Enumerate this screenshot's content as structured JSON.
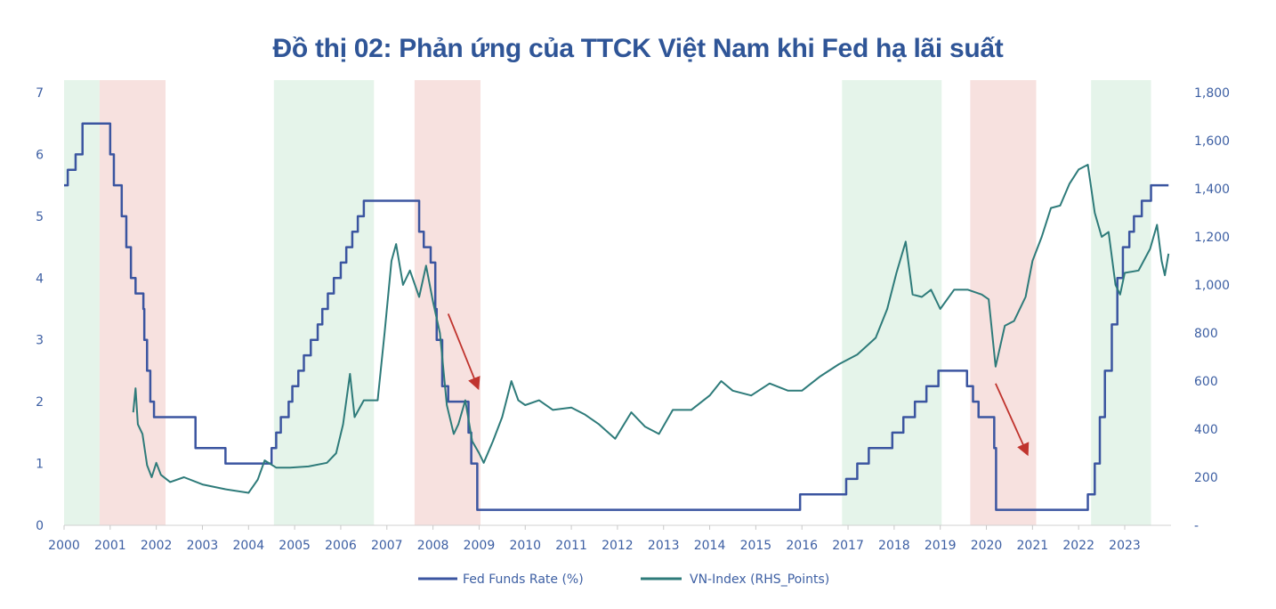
{
  "chart_data": {
    "type": "line",
    "title": "Đồ thị 02: Phản ứng của TTCK Việt Nam khi Fed hạ lãi suất",
    "xlim": [
      2000,
      2024
    ],
    "x_ticks": [
      "2000",
      "2001",
      "2002",
      "2003",
      "2004",
      "2005",
      "2006",
      "2007",
      "2008",
      "2009",
      "2010",
      "2011",
      "2012",
      "2013",
      "2014",
      "2015",
      "2016",
      "2017",
      "2018",
      "2019",
      "2020",
      "2021",
      "2022",
      "2023"
    ],
    "y_left": {
      "lim": [
        0,
        7
      ],
      "ticks": [
        "0",
        "1",
        "2",
        "3",
        "4",
        "5",
        "6",
        "7"
      ]
    },
    "y_right": {
      "lim": [
        0,
        1800
      ],
      "ticks": [
        "-",
        "200",
        "400",
        "600",
        "800",
        "1,000",
        "1,200",
        "1,400",
        "1,600",
        "1,800"
      ]
    },
    "grid": false,
    "legend_placement": "bottom",
    "shaded_periods": [
      {
        "type": "rate-hike",
        "color": "#E5F4EA",
        "from": 2000.0,
        "to": 2000.77
      },
      {
        "type": "rate-cut",
        "color": "#F7E1DF",
        "from": 2000.77,
        "to": 2002.2
      },
      {
        "type": "rate-hike",
        "color": "#E5F4EA",
        "from": 2004.55,
        "to": 2006.72
      },
      {
        "type": "rate-cut",
        "color": "#F7E1DF",
        "from": 2007.6,
        "to": 2009.03
      },
      {
        "type": "rate-hike",
        "color": "#E5F4EA",
        "from": 2016.87,
        "to": 2019.03
      },
      {
        "type": "rate-cut",
        "color": "#F7E1DF",
        "from": 2019.65,
        "to": 2021.08
      },
      {
        "type": "rate-hike",
        "color": "#E5F4EA",
        "from": 2022.27,
        "to": 2023.57
      }
    ],
    "series": [
      {
        "name": "Fed Funds Rate (%)",
        "axis": "left",
        "style": "step",
        "color": "#3B55A0",
        "points": [
          [
            2000.0,
            5.5
          ],
          [
            2000.08,
            5.75
          ],
          [
            2000.25,
            6.0
          ],
          [
            2000.4,
            6.5
          ],
          [
            2001.0,
            6.0
          ],
          [
            2001.08,
            5.5
          ],
          [
            2001.25,
            5.0
          ],
          [
            2001.35,
            4.5
          ],
          [
            2001.45,
            4.0
          ],
          [
            2001.55,
            3.75
          ],
          [
            2001.72,
            3.5
          ],
          [
            2001.74,
            3.0
          ],
          [
            2001.8,
            2.5
          ],
          [
            2001.87,
            2.0
          ],
          [
            2001.95,
            1.75
          ],
          [
            2002.85,
            1.25
          ],
          [
            2003.5,
            1.0
          ],
          [
            2004.5,
            1.25
          ],
          [
            2004.6,
            1.5
          ],
          [
            2004.7,
            1.75
          ],
          [
            2004.87,
            2.0
          ],
          [
            2004.95,
            2.25
          ],
          [
            2005.08,
            2.5
          ],
          [
            2005.2,
            2.75
          ],
          [
            2005.35,
            3.0
          ],
          [
            2005.5,
            3.25
          ],
          [
            2005.6,
            3.5
          ],
          [
            2005.72,
            3.75
          ],
          [
            2005.85,
            4.0
          ],
          [
            2006.0,
            4.25
          ],
          [
            2006.12,
            4.5
          ],
          [
            2006.25,
            4.75
          ],
          [
            2006.37,
            5.0
          ],
          [
            2006.5,
            5.25
          ],
          [
            2007.7,
            4.75
          ],
          [
            2007.8,
            4.5
          ],
          [
            2007.95,
            4.25
          ],
          [
            2008.05,
            3.5
          ],
          [
            2008.08,
            3.0
          ],
          [
            2008.2,
            2.25
          ],
          [
            2008.33,
            2.0
          ],
          [
            2008.77,
            1.5
          ],
          [
            2008.83,
            1.0
          ],
          [
            2008.96,
            0.25
          ],
          [
            2015.96,
            0.5
          ],
          [
            2016.96,
            0.75
          ],
          [
            2017.2,
            1.0
          ],
          [
            2017.45,
            1.25
          ],
          [
            2017.96,
            1.5
          ],
          [
            2018.2,
            1.75
          ],
          [
            2018.45,
            2.0
          ],
          [
            2018.7,
            2.25
          ],
          [
            2018.96,
            2.5
          ],
          [
            2019.58,
            2.25
          ],
          [
            2019.71,
            2.0
          ],
          [
            2019.83,
            1.75
          ],
          [
            2020.17,
            1.25
          ],
          [
            2020.21,
            0.25
          ],
          [
            2022.2,
            0.5
          ],
          [
            2022.35,
            1.0
          ],
          [
            2022.46,
            1.75
          ],
          [
            2022.57,
            2.5
          ],
          [
            2022.72,
            3.25
          ],
          [
            2022.84,
            4.0
          ],
          [
            2022.96,
            4.5
          ],
          [
            2023.1,
            4.75
          ],
          [
            2023.2,
            5.0
          ],
          [
            2023.37,
            5.25
          ],
          [
            2023.57,
            5.5
          ],
          [
            2023.95,
            5.5
          ]
        ]
      },
      {
        "name": "VN-Index (RHS_Points)",
        "axis": "right",
        "style": "line",
        "color": "#2E7B7A",
        "points": [
          [
            2001.5,
            470
          ],
          [
            2001.55,
            570
          ],
          [
            2001.6,
            420
          ],
          [
            2001.7,
            380
          ],
          [
            2001.8,
            250
          ],
          [
            2001.9,
            200
          ],
          [
            2002.0,
            260
          ],
          [
            2002.1,
            210
          ],
          [
            2002.3,
            180
          ],
          [
            2002.6,
            200
          ],
          [
            2003.0,
            170
          ],
          [
            2003.5,
            150
          ],
          [
            2004.0,
            135
          ],
          [
            2004.2,
            190
          ],
          [
            2004.35,
            270
          ],
          [
            2004.6,
            240
          ],
          [
            2004.9,
            240
          ],
          [
            2005.3,
            245
          ],
          [
            2005.7,
            260
          ],
          [
            2005.9,
            300
          ],
          [
            2006.05,
            420
          ],
          [
            2006.2,
            630
          ],
          [
            2006.3,
            450
          ],
          [
            2006.5,
            520
          ],
          [
            2006.8,
            520
          ],
          [
            2006.95,
            800
          ],
          [
            2007.1,
            1100
          ],
          [
            2007.2,
            1170
          ],
          [
            2007.35,
            1000
          ],
          [
            2007.5,
            1060
          ],
          [
            2007.7,
            950
          ],
          [
            2007.85,
            1080
          ],
          [
            2008.0,
            930
          ],
          [
            2008.15,
            800
          ],
          [
            2008.3,
            500
          ],
          [
            2008.45,
            380
          ],
          [
            2008.55,
            420
          ],
          [
            2008.7,
            520
          ],
          [
            2008.85,
            350
          ],
          [
            2009.0,
            300
          ],
          [
            2009.1,
            260
          ],
          [
            2009.3,
            350
          ],
          [
            2009.5,
            450
          ],
          [
            2009.7,
            600
          ],
          [
            2009.85,
            520
          ],
          [
            2010.0,
            500
          ],
          [
            2010.3,
            520
          ],
          [
            2010.6,
            480
          ],
          [
            2011.0,
            490
          ],
          [
            2011.3,
            460
          ],
          [
            2011.6,
            420
          ],
          [
            2011.95,
            360
          ],
          [
            2012.3,
            470
          ],
          [
            2012.6,
            410
          ],
          [
            2012.9,
            380
          ],
          [
            2013.2,
            480
          ],
          [
            2013.6,
            480
          ],
          [
            2014.0,
            540
          ],
          [
            2014.25,
            600
          ],
          [
            2014.5,
            560
          ],
          [
            2014.9,
            540
          ],
          [
            2015.3,
            590
          ],
          [
            2015.7,
            560
          ],
          [
            2016.0,
            560
          ],
          [
            2016.4,
            620
          ],
          [
            2016.8,
            670
          ],
          [
            2017.2,
            710
          ],
          [
            2017.6,
            780
          ],
          [
            2017.85,
            900
          ],
          [
            2018.05,
            1050
          ],
          [
            2018.25,
            1180
          ],
          [
            2018.4,
            960
          ],
          [
            2018.6,
            950
          ],
          [
            2018.8,
            980
          ],
          [
            2019.0,
            900
          ],
          [
            2019.3,
            980
          ],
          [
            2019.6,
            980
          ],
          [
            2019.9,
            960
          ],
          [
            2020.05,
            940
          ],
          [
            2020.2,
            660
          ],
          [
            2020.4,
            830
          ],
          [
            2020.6,
            850
          ],
          [
            2020.85,
            950
          ],
          [
            2021.0,
            1100
          ],
          [
            2021.2,
            1200
          ],
          [
            2021.4,
            1320
          ],
          [
            2021.6,
            1330
          ],
          [
            2021.8,
            1420
          ],
          [
            2022.0,
            1480
          ],
          [
            2022.2,
            1500
          ],
          [
            2022.35,
            1300
          ],
          [
            2022.5,
            1200
          ],
          [
            2022.65,
            1220
          ],
          [
            2022.8,
            1000
          ],
          [
            2022.9,
            960
          ],
          [
            2023.0,
            1050
          ],
          [
            2023.3,
            1060
          ],
          [
            2023.55,
            1150
          ],
          [
            2023.7,
            1250
          ],
          [
            2023.8,
            1100
          ],
          [
            2023.87,
            1040
          ],
          [
            2023.95,
            1130
          ]
        ]
      }
    ],
    "annotations": [
      {
        "type": "arrow",
        "color": "#C0342E",
        "from": [
          2008.33,
          880
        ],
        "to": [
          2008.97,
          575
        ]
      },
      {
        "type": "arrow",
        "color": "#C0342E",
        "from": [
          2020.2,
          590
        ],
        "to": [
          2020.88,
          300
        ]
      }
    ]
  }
}
